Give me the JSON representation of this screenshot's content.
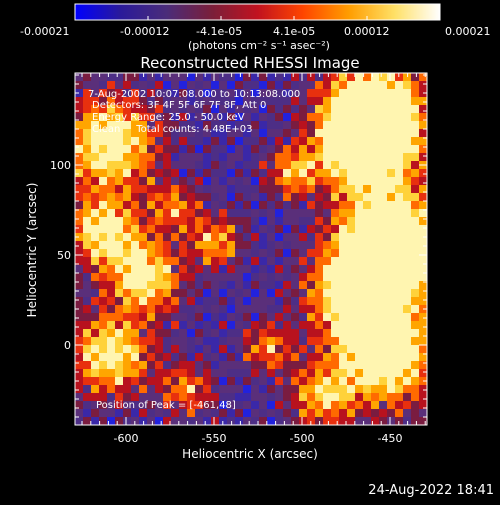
{
  "colorbar": {
    "ticks": [
      "-0.00021",
      "-0.00012",
      "-4.1e-05",
      "4.1e-05",
      "0.00012",
      "0.00021"
    ],
    "units": "(photons cm⁻² s⁻¹ asec⁻²)",
    "stops": [
      "#0000ff",
      "#2a1a9a",
      "#4a2c7a",
      "#7a1f3a",
      "#c1121f",
      "#ff4500",
      "#ff9d00",
      "#ffe066",
      "#ffffff"
    ]
  },
  "image": {
    "title": "Reconstructed RHESSI Image",
    "notes": {
      "time": "7-Aug-2002 10:07:08.000 to 10:13:08.000",
      "detectors": "Detectors: 3F 4F 5F 6F 7F 8F, Att 0",
      "energy": "Energy Range: 25.0 - 50.0 keV",
      "counts": "Clean     Total counts: 4.48E+03",
      "peak": "Position of Peak = [-461,48]"
    },
    "x_axis": {
      "label": "Heliocentric X (arcsec)",
      "ticks": [
        "-600",
        "-550",
        "-500",
        "-450"
      ]
    },
    "y_axis": {
      "label": "Heliocentric Y (arcsec)",
      "ticks": [
        "0",
        "50",
        "100"
      ]
    },
    "timestamp": "24-Aug-2022 18:41"
  }
}
